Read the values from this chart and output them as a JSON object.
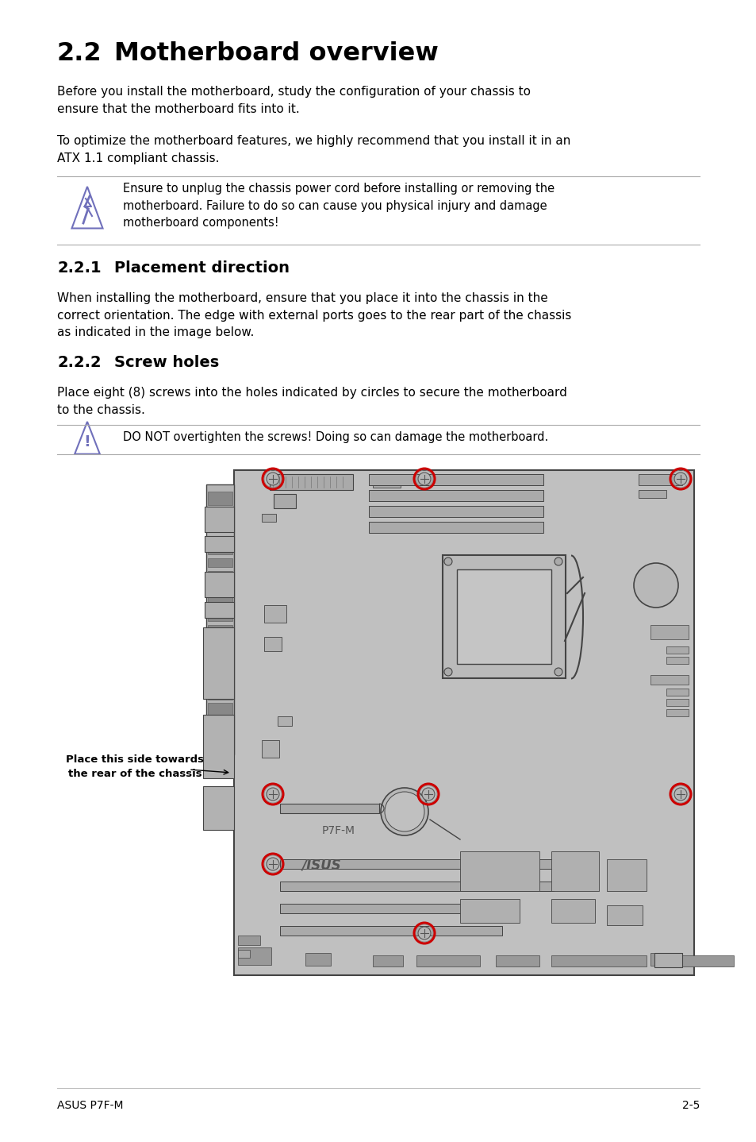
{
  "title_num": "2.2",
  "title_text": "Motherboard overview",
  "para1": "Before you install the motherboard, study the configuration of your chassis to\nensure that the motherboard fits into it.",
  "para2": "To optimize the motherboard features, we highly recommend that you install it in an\nATX 1.1 compliant chassis.",
  "warn1_text": "Ensure to unplug the chassis power cord before installing or removing the\nmotherboard. Failure to do so can cause you physical injury and damage\nmotherboard components!",
  "section221_num": "2.2.1",
  "section221_text": "Placement direction",
  "para221": "When installing the motherboard, ensure that you place it into the chassis in the\ncorrect orientation. The edge with external ports goes to the rear part of the chassis\nas indicated in the image below.",
  "section222_num": "2.2.2",
  "section222_text": "Screw holes",
  "para222": "Place eight (8) screws into the holes indicated by circles to secure the motherboard\nto the chassis.",
  "warn2_text": "DO NOT overtighten the screws! Doing so can damage the motherboard.",
  "placement_label": "Place this side towards\nthe rear of the chassis",
  "board_label1": "P7F-M",
  "board_label2": "/ISUS",
  "footer_left": "ASUS P7F-M",
  "footer_right": "2-5",
  "bg_color": "#ffffff",
  "text_color": "#000000",
  "gray_line": "#aaaaaa",
  "board_fill": "#c0c0c0",
  "board_edge": "#444444",
  "screw_red": "#cc0000",
  "icon_color": "#7070bb",
  "lmargin": 72,
  "rmargin": 882
}
